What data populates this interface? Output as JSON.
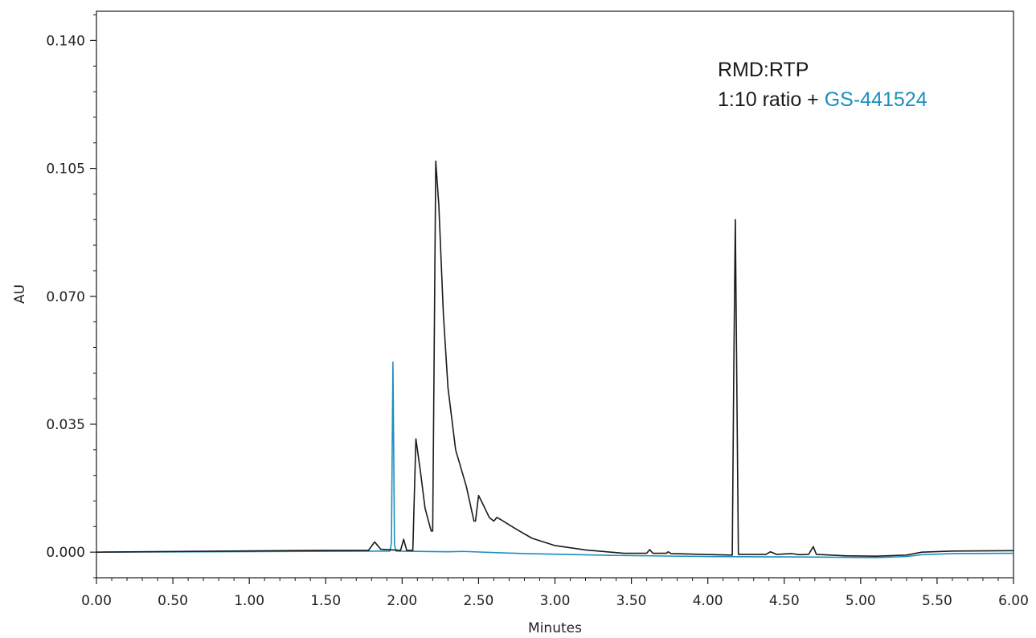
{
  "chart_data": {
    "type": "line",
    "xlabel": "Minutes",
    "ylabel": "AU",
    "xlim": [
      0,
      6
    ],
    "ylim": [
      -0.007,
      0.148
    ],
    "x_ticks": [
      "0.00",
      "0.50",
      "1.00",
      "1.50",
      "2.00",
      "2.50",
      "3.00",
      "3.50",
      "4.00",
      "4.50",
      "5.00",
      "5.50",
      "6.00"
    ],
    "y_ticks": [
      "0.000",
      "0.035",
      "0.070",
      "0.105",
      "0.140"
    ],
    "grid": false,
    "annotation": {
      "line1": "RMD:RTP",
      "line2_prefix": "1:10 ratio + ",
      "line2_highlight": "GS-441524"
    },
    "colors": {
      "series_1": "#1a1a1a",
      "series_2": "#1a8fbf"
    },
    "series": [
      {
        "points": [
          [
            0.0,
            0.0
          ],
          [
            1.5,
            0.0005
          ],
          [
            1.78,
            0.0005
          ],
          [
            1.82,
            0.0028
          ],
          [
            1.86,
            0.0008
          ],
          [
            1.99,
            0.0005
          ],
          [
            2.01,
            0.0035
          ],
          [
            2.03,
            0.0005
          ],
          [
            2.07,
            0.0005
          ],
          [
            2.09,
            0.031
          ],
          [
            2.12,
            0.022
          ],
          [
            2.15,
            0.012
          ],
          [
            2.19,
            0.0058
          ],
          [
            2.2,
            0.0058
          ],
          [
            2.22,
            0.107
          ],
          [
            2.24,
            0.095
          ],
          [
            2.27,
            0.065
          ],
          [
            2.3,
            0.045
          ],
          [
            2.35,
            0.028
          ],
          [
            2.42,
            0.018
          ],
          [
            2.47,
            0.0085
          ],
          [
            2.48,
            0.0085
          ],
          [
            2.5,
            0.0155
          ],
          [
            2.53,
            0.013
          ],
          [
            2.57,
            0.0095
          ],
          [
            2.6,
            0.0085
          ],
          [
            2.62,
            0.0095
          ],
          [
            2.65,
            0.0088
          ],
          [
            2.75,
            0.0062
          ],
          [
            2.85,
            0.0038
          ],
          [
            3.0,
            0.0018
          ],
          [
            3.2,
            0.0006
          ],
          [
            3.45,
            -0.0003
          ],
          [
            3.6,
            -0.0003
          ],
          [
            3.62,
            0.0007
          ],
          [
            3.64,
            -0.0003
          ],
          [
            3.73,
            -0.0003
          ],
          [
            3.74,
            0.0001
          ],
          [
            3.76,
            -0.0004
          ],
          [
            4.16,
            -0.0008
          ],
          [
            4.17,
            0.05
          ],
          [
            4.18,
            0.091
          ],
          [
            4.19,
            0.045
          ],
          [
            4.2,
            -0.0006
          ],
          [
            4.38,
            -0.0006
          ],
          [
            4.41,
            0.0001
          ],
          [
            4.45,
            -0.0006
          ],
          [
            4.55,
            -0.0004
          ],
          [
            4.6,
            -0.0007
          ],
          [
            4.66,
            -0.0006
          ],
          [
            4.69,
            0.0015
          ],
          [
            4.71,
            -0.0006
          ],
          [
            4.9,
            -0.001
          ],
          [
            5.1,
            -0.0011
          ],
          [
            5.3,
            -0.0008
          ],
          [
            5.4,
            0.0
          ],
          [
            5.6,
            0.0003
          ],
          [
            6.0,
            0.0004
          ]
        ]
      },
      {
        "points": [
          [
            0.0,
            0.0
          ],
          [
            1.92,
            0.0003
          ],
          [
            1.93,
            0.0025
          ],
          [
            1.94,
            0.052
          ],
          [
            1.95,
            0.002
          ],
          [
            1.96,
            0.0003
          ],
          [
            2.3,
            0.0001
          ],
          [
            2.4,
            0.0002
          ],
          [
            2.8,
            -0.0004
          ],
          [
            3.4,
            -0.0009
          ],
          [
            4.0,
            -0.0012
          ],
          [
            4.5,
            -0.0013
          ],
          [
            4.9,
            -0.0014
          ],
          [
            5.1,
            -0.0015
          ],
          [
            5.3,
            -0.0012
          ],
          [
            5.4,
            -0.0007
          ],
          [
            5.6,
            -0.0004
          ],
          [
            6.0,
            -0.0003
          ]
        ]
      }
    ]
  }
}
